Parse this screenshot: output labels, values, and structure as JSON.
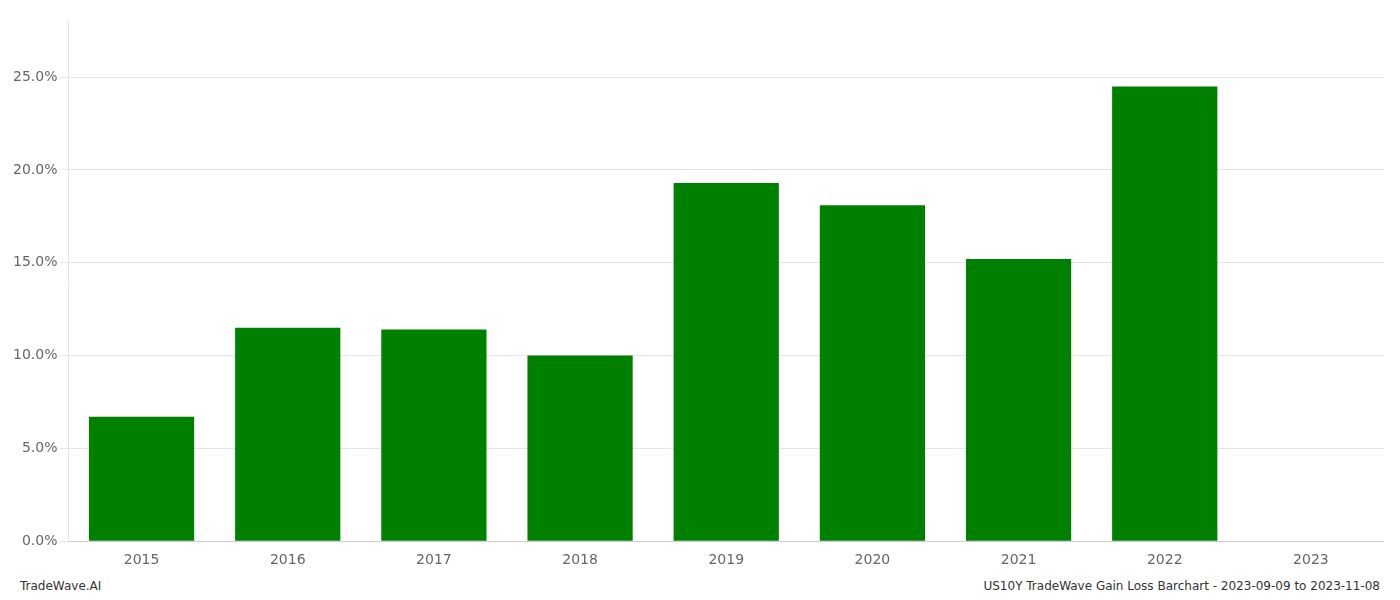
{
  "chart_data": {
    "type": "bar",
    "categories": [
      "2015",
      "2016",
      "2017",
      "2018",
      "2019",
      "2020",
      "2021",
      "2022",
      "2023"
    ],
    "values": [
      0.067,
      0.115,
      0.114,
      0.1,
      0.193,
      0.181,
      0.152,
      0.245,
      null
    ],
    "color": "#008000",
    "ylim": [
      0,
      0.28
    ],
    "yticks": [
      {
        "value": 0.0,
        "label": "0.0%"
      },
      {
        "value": 0.05,
        "label": "5.0%"
      },
      {
        "value": 0.1,
        "label": "10.0%"
      },
      {
        "value": 0.15,
        "label": "15.0%"
      },
      {
        "value": 0.2,
        "label": "20.0%"
      },
      {
        "value": 0.25,
        "label": "25.0%"
      }
    ],
    "grid": true,
    "annotations": [
      "TradeWave.AI",
      "US10Y TradeWave Gain Loss Barchart - 2023-09-09 to 2023-11-08"
    ]
  }
}
